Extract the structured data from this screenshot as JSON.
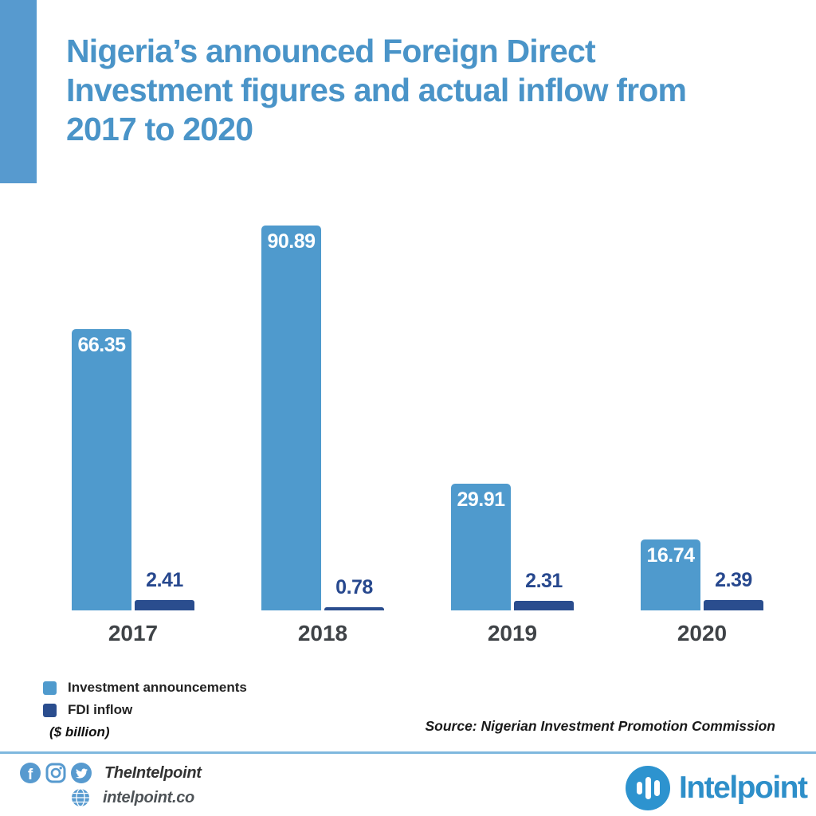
{
  "title": {
    "lines": [
      "Nigeria’s announced Foreign Direct",
      "Investment figures and actual inflow from",
      "2017 to 2020"
    ]
  },
  "chart_data": {
    "type": "bar",
    "categories": [
      "2017",
      "2018",
      "2019",
      "2020"
    ],
    "series": [
      {
        "name": "Investment announcements",
        "color": "#4F9ACD",
        "values": [
          66.35,
          90.89,
          29.91,
          16.74
        ]
      },
      {
        "name": "FDI inflow",
        "color": "#2A4D8E",
        "values": [
          2.41,
          0.78,
          2.31,
          2.39
        ]
      }
    ],
    "unit_note": "($ billion)",
    "ylim": [
      0,
      91
    ],
    "grid": false,
    "legend_position": "bottom-left",
    "value_labels": true
  },
  "legend": {
    "items": [
      {
        "label": "Investment announcements",
        "color": "#4F9ACD"
      },
      {
        "label": "FDI inflow",
        "color": "#2A4D8E"
      }
    ],
    "unit_note": "($ billion)"
  },
  "source": "Source: Nigerian Investment Promotion Commission",
  "footer": {
    "social_handle": "TheIntelpoint",
    "website": "intelpoint.co",
    "brand": "Intelpoint",
    "icons": [
      "facebook-icon",
      "instagram-icon",
      "twitter-icon",
      "globe-icon"
    ]
  },
  "colors": {
    "bar_light": "#4F9ACD",
    "bar_dark": "#2A4D8E",
    "title_blue": "#4A94C8",
    "accent": "#579ACF",
    "divider": "#7FB8DE",
    "brand_blue": "#2E8FC9",
    "value_navy": "#27488E",
    "year_gray": "#3F4347"
  }
}
